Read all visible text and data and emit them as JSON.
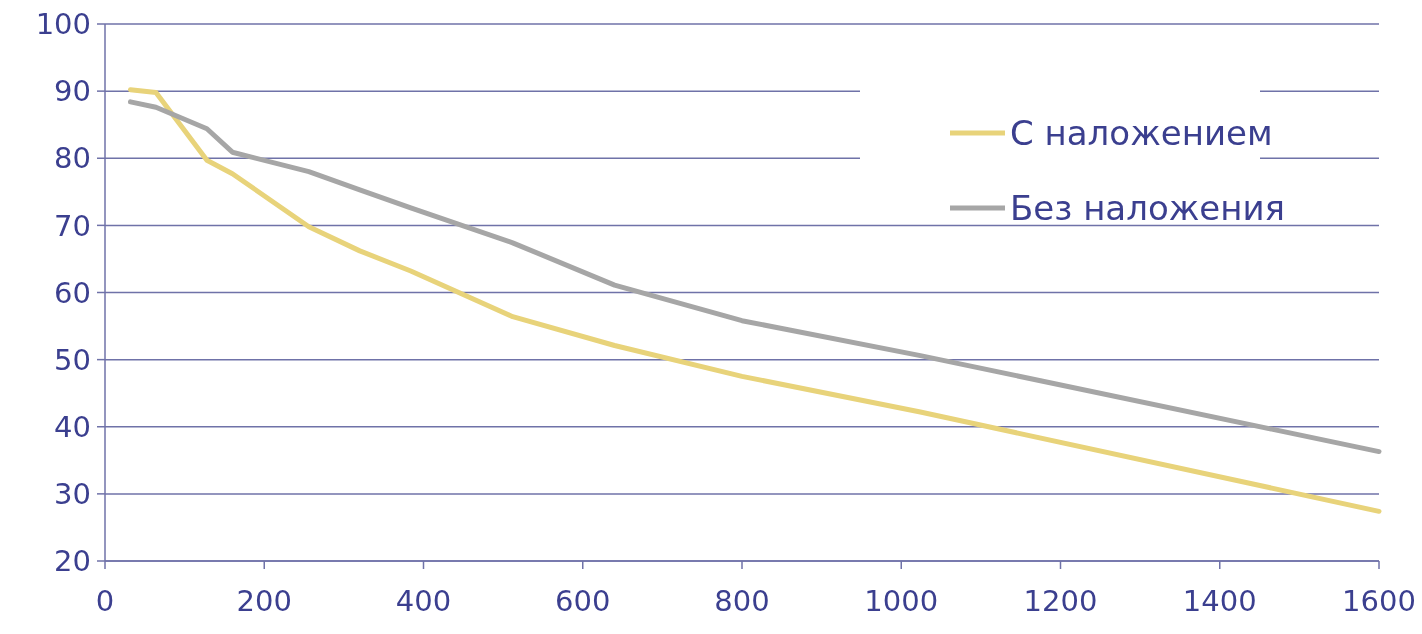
{
  "chart_data": {
    "type": "line",
    "x": [
      32,
      64,
      128,
      160,
      256,
      320,
      384,
      512,
      640,
      800,
      1024,
      1600
    ],
    "series": [
      {
        "name": "С наложением",
        "color": "#e8d37a",
        "values": [
          90.2,
          89.8,
          79.7,
          77.7,
          69.8,
          66.2,
          63.2,
          56.4,
          52.1,
          47.5,
          42.2,
          27.4
        ]
      },
      {
        "name": "Без наложения",
        "color": "#a6a6a6",
        "values": [
          88.4,
          87.6,
          84.4,
          80.9,
          78,
          75.3,
          72.6,
          67.4,
          61.1,
          55.8,
          50.6,
          36.3
        ]
      }
    ],
    "xlim": [
      0,
      1600
    ],
    "xticks": [
      0,
      200,
      400,
      600,
      800,
      1000,
      1200,
      1400,
      1600
    ],
    "ylim": [
      20,
      100
    ],
    "yticks": [
      20,
      30,
      40,
      50,
      60,
      70,
      80,
      90,
      100
    ],
    "grid": "y",
    "legend": "top right",
    "marker": "none",
    "line_style": "solid"
  }
}
